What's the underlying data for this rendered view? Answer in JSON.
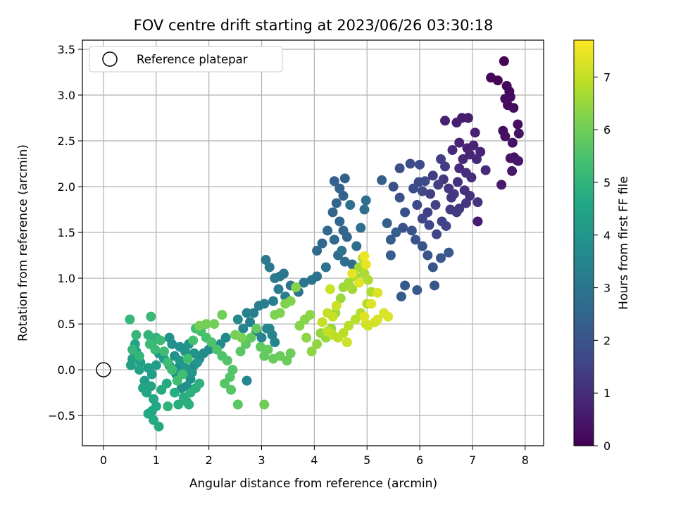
{
  "chart_data": {
    "type": "scatter",
    "title": "FOV centre drift starting at 2023/06/26 03:30:18",
    "xlabel": "Angular distance from reference (arcmin)",
    "ylabel": "Rotation from reference (arcmin)",
    "xlim": [
      -0.4,
      8.35
    ],
    "ylim": [
      -0.83,
      3.6
    ],
    "xticks": [
      0,
      1,
      2,
      3,
      4,
      5,
      6,
      7,
      8
    ],
    "yticks": [
      -0.5,
      0.0,
      0.5,
      1.0,
      1.5,
      2.0,
      2.5,
      3.0,
      3.5
    ],
    "xtick_labels": [
      "0",
      "1",
      "2",
      "3",
      "4",
      "5",
      "6",
      "7",
      "8"
    ],
    "ytick_labels": [
      "−0.5",
      "0.0",
      "0.5",
      "1.0",
      "1.5",
      "2.0",
      "2.5",
      "3.0",
      "3.5"
    ],
    "grid": true,
    "legend": {
      "placement": "top-left",
      "entries": [
        "Reference platepar"
      ]
    },
    "reference_point": {
      "x": 0,
      "y": 0,
      "label": "Reference platepar",
      "marker": "open-circle"
    },
    "colorbar": {
      "label": "Hours from first FF file",
      "colormap": "viridis",
      "range": [
        0,
        7.7
      ],
      "ticks": [
        0,
        1,
        2,
        3,
        4,
        5,
        6,
        7
      ],
      "tick_labels": [
        "0",
        "1",
        "2",
        "3",
        "4",
        "5",
        "6",
        "7"
      ]
    },
    "point_columns": [
      "x",
      "y",
      "hours"
    ],
    "points": [
      [
        7.6,
        3.37,
        0.05
      ],
      [
        7.35,
        3.19,
        0.1
      ],
      [
        7.48,
        3.16,
        0.12
      ],
      [
        7.65,
        3.1,
        0.15
      ],
      [
        7.7,
        3.04,
        0.18
      ],
      [
        7.72,
        2.98,
        0.2
      ],
      [
        7.67,
        2.89,
        0.22
      ],
      [
        7.78,
        2.86,
        0.25
      ],
      [
        7.62,
        2.96,
        0.28
      ],
      [
        7.86,
        2.68,
        0.3
      ],
      [
        7.58,
        2.61,
        0.32
      ],
      [
        7.62,
        2.55,
        0.35
      ],
      [
        7.88,
        2.58,
        0.38
      ],
      [
        7.76,
        2.48,
        0.4
      ],
      [
        7.79,
        2.32,
        0.42
      ],
      [
        7.72,
        2.31,
        0.45
      ],
      [
        7.84,
        2.29,
        0.48
      ],
      [
        7.87,
        2.28,
        0.5
      ],
      [
        7.75,
        2.17,
        0.52
      ],
      [
        7.55,
        2.02,
        0.55
      ],
      [
        7.1,
        1.62,
        0.58
      ],
      [
        6.8,
        2.75,
        0.6
      ],
      [
        6.92,
        2.75,
        0.62
      ],
      [
        6.7,
        2.7,
        0.65
      ],
      [
        6.48,
        2.72,
        0.68
      ],
      [
        7.05,
        2.59,
        0.7
      ],
      [
        6.75,
        2.48,
        0.72
      ],
      [
        6.9,
        2.42,
        0.75
      ],
      [
        7.02,
        2.45,
        0.78
      ],
      [
        7.15,
        2.38,
        0.8
      ],
      [
        6.95,
        2.35,
        0.82
      ],
      [
        7.08,
        2.3,
        0.85
      ],
      [
        6.82,
        2.3,
        0.88
      ],
      [
        6.62,
        2.4,
        0.9
      ],
      [
        6.75,
        2.2,
        0.92
      ],
      [
        7.25,
        2.18,
        0.95
      ],
      [
        6.88,
        2.15,
        1.0
      ],
      [
        6.98,
        2.1,
        1.02
      ],
      [
        6.72,
        2.05,
        1.05
      ],
      [
        6.85,
        1.96,
        1.08
      ],
      [
        6.95,
        1.9,
        1.1
      ],
      [
        6.88,
        1.82,
        1.12
      ],
      [
        6.75,
        1.76,
        1.15
      ],
      [
        7.1,
        1.83,
        1.18
      ],
      [
        6.6,
        1.88,
        1.2
      ],
      [
        6.55,
        1.98,
        1.22
      ],
      [
        6.45,
        2.08,
        1.25
      ],
      [
        6.65,
        1.92,
        1.28
      ],
      [
        6.58,
        1.75,
        1.3
      ],
      [
        6.7,
        1.72,
        1.32
      ],
      [
        6.48,
        2.22,
        1.35
      ],
      [
        6.4,
        2.3,
        1.38
      ],
      [
        6.25,
        2.12,
        1.4
      ],
      [
        6.35,
        2.02,
        1.42
      ],
      [
        6.2,
        1.92,
        1.45
      ],
      [
        6.3,
        1.8,
        1.48
      ],
      [
        6.15,
        1.72,
        1.5
      ],
      [
        6.42,
        1.62,
        1.52
      ],
      [
        6.5,
        1.57,
        1.55
      ],
      [
        6.32,
        1.48,
        1.58
      ],
      [
        6.18,
        1.58,
        1.6
      ],
      [
        6.05,
        1.65,
        1.62
      ],
      [
        5.95,
        1.8,
        1.65
      ],
      [
        6.05,
        1.95,
        1.68
      ],
      [
        6.1,
        2.06,
        1.7
      ],
      [
        5.98,
        2.05,
        1.72
      ],
      [
        5.88,
        1.98,
        1.75
      ],
      [
        6.0,
        2.24,
        1.78
      ],
      [
        5.82,
        2.25,
        1.8
      ],
      [
        5.62,
        2.2,
        1.82
      ],
      [
        5.5,
        2.0,
        1.85
      ],
      [
        5.62,
        1.88,
        1.88
      ],
      [
        5.72,
        1.72,
        1.9
      ],
      [
        5.68,
        1.55,
        1.92
      ],
      [
        5.85,
        1.52,
        1.95
      ],
      [
        5.92,
        1.42,
        1.98
      ],
      [
        6.05,
        1.35,
        2.0
      ],
      [
        6.15,
        1.25,
        2.02
      ],
      [
        6.25,
        1.12,
        2.05
      ],
      [
        6.4,
        1.22,
        2.08
      ],
      [
        6.55,
        1.28,
        2.1
      ],
      [
        6.28,
        0.92,
        2.12
      ],
      [
        5.95,
        0.87,
        2.15
      ],
      [
        5.72,
        0.92,
        2.18
      ],
      [
        5.65,
        0.8,
        2.2
      ],
      [
        5.45,
        1.42,
        2.22
      ],
      [
        5.45,
        1.25,
        2.25
      ],
      [
        5.55,
        1.5,
        2.28
      ],
      [
        5.38,
        1.6,
        2.3
      ],
      [
        5.28,
        2.07,
        2.32
      ],
      [
        4.58,
        2.09,
        2.35
      ],
      [
        4.38,
        2.06,
        2.38
      ],
      [
        4.48,
        1.98,
        2.4
      ],
      [
        4.55,
        1.9,
        2.42
      ],
      [
        4.42,
        1.82,
        2.45
      ],
      [
        4.35,
        1.72,
        2.48
      ],
      [
        4.48,
        1.62,
        2.5
      ],
      [
        4.55,
        1.52,
        2.52
      ],
      [
        4.62,
        1.45,
        2.55
      ],
      [
        4.38,
        1.42,
        2.58
      ],
      [
        4.25,
        1.52,
        2.6
      ],
      [
        4.15,
        1.38,
        2.62
      ],
      [
        4.05,
        1.3,
        2.65
      ],
      [
        4.45,
        1.25,
        2.68
      ],
      [
        4.58,
        1.18,
        2.7
      ],
      [
        4.72,
        1.15,
        2.72
      ],
      [
        4.8,
        1.35,
        2.75
      ],
      [
        4.88,
        1.55,
        2.78
      ],
      [
        4.95,
        1.75,
        2.8
      ],
      [
        4.98,
        1.85,
        2.82
      ],
      [
        4.68,
        1.8,
        2.85
      ],
      [
        4.52,
        1.3,
        2.88
      ],
      [
        4.22,
        1.12,
        2.9
      ],
      [
        4.05,
        1.02,
        2.92
      ],
      [
        3.95,
        0.98,
        2.95
      ],
      [
        3.8,
        0.95,
        2.98
      ],
      [
        3.7,
        0.85,
        3.0
      ],
      [
        3.55,
        0.92,
        3.02
      ],
      [
        3.42,
        1.05,
        3.05
      ],
      [
        3.35,
        1.02,
        3.08
      ],
      [
        3.25,
        1.0,
        3.1
      ],
      [
        3.08,
        1.2,
        3.12
      ],
      [
        3.15,
        1.12,
        3.15
      ],
      [
        3.32,
        0.88,
        3.18
      ],
      [
        3.45,
        0.8,
        3.2
      ],
      [
        3.22,
        0.75,
        3.22
      ],
      [
        3.05,
        0.72,
        3.25
      ],
      [
        2.95,
        0.7,
        3.28
      ],
      [
        2.85,
        0.62,
        3.3
      ],
      [
        2.72,
        0.62,
        3.32
      ],
      [
        2.78,
        0.52,
        3.35
      ],
      [
        2.9,
        0.42,
        3.38
      ],
      [
        3.0,
        0.35,
        3.4
      ],
      [
        3.1,
        0.45,
        3.42
      ],
      [
        3.2,
        0.38,
        3.45
      ],
      [
        3.25,
        0.3,
        3.48
      ],
      [
        3.15,
        0.45,
        3.5
      ],
      [
        2.72,
        -0.12,
        3.52
      ],
      [
        2.65,
        0.45,
        3.55
      ],
      [
        2.55,
        0.55,
        3.58
      ],
      [
        2.32,
        0.35,
        3.6
      ],
      [
        2.22,
        0.28,
        3.62
      ],
      [
        2.0,
        0.22,
        3.65
      ],
      [
        1.9,
        0.18,
        3.68
      ],
      [
        1.82,
        0.12,
        3.7
      ],
      [
        1.72,
        0.05,
        3.72
      ],
      [
        1.65,
        -0.1,
        3.75
      ],
      [
        1.58,
        -0.18,
        3.78
      ],
      [
        1.48,
        -0.2,
        3.8
      ],
      [
        1.42,
        0.02,
        3.82
      ],
      [
        1.35,
        0.15,
        3.85
      ],
      [
        1.45,
        0.25,
        3.88
      ],
      [
        1.3,
        0.28,
        3.9
      ],
      [
        1.25,
        0.35,
        3.92
      ],
      [
        1.55,
        0.2,
        3.95
      ],
      [
        1.62,
        0.28,
        3.98
      ],
      [
        1.72,
        0.18,
        4.0
      ],
      [
        1.78,
        0.08,
        4.02
      ],
      [
        1.68,
        -0.03,
        4.05
      ],
      [
        1.55,
        0.02,
        4.08
      ],
      [
        1.45,
        0.1,
        4.1
      ],
      [
        1.38,
        -0.05,
        4.12
      ],
      [
        1.25,
        0.05,
        4.15
      ],
      [
        1.15,
        0.12,
        4.18
      ],
      [
        1.05,
        0.18,
        4.2
      ],
      [
        1.0,
        0.05,
        4.22
      ],
      [
        0.92,
        -0.05,
        4.25
      ],
      [
        0.85,
        0.02,
        4.28
      ],
      [
        0.78,
        -0.12,
        4.3
      ],
      [
        0.7,
        0.08,
        4.32
      ],
      [
        0.62,
        0.2,
        4.35
      ],
      [
        0.55,
        0.12,
        4.38
      ],
      [
        0.52,
        0.05,
        4.4
      ],
      [
        0.6,
        0.28,
        4.42
      ],
      [
        0.68,
        0.0,
        4.45
      ],
      [
        0.75,
        -0.2,
        4.48
      ],
      [
        0.82,
        -0.25,
        4.5
      ],
      [
        0.9,
        -0.18,
        4.52
      ],
      [
        0.95,
        -0.32,
        4.55
      ],
      [
        1.0,
        -0.4,
        4.58
      ],
      [
        0.92,
        -0.45,
        4.6
      ],
      [
        0.85,
        -0.48,
        4.62
      ],
      [
        0.95,
        -0.55,
        4.65
      ],
      [
        1.05,
        -0.62,
        4.68
      ],
      [
        1.1,
        -0.22,
        4.7
      ],
      [
        1.2,
        -0.15,
        4.72
      ],
      [
        1.35,
        -0.25,
        4.75
      ],
      [
        1.42,
        -0.38,
        4.78
      ],
      [
        1.52,
        -0.3,
        4.8
      ],
      [
        1.58,
        -0.35,
        4.82
      ],
      [
        1.62,
        -0.38,
        4.85
      ],
      [
        1.65,
        -0.25,
        4.88
      ],
      [
        1.75,
        -0.2,
        4.9
      ],
      [
        1.82,
        -0.15,
        4.92
      ],
      [
        1.22,
        -0.4,
        4.95
      ],
      [
        1.0,
        0.35,
        4.98
      ],
      [
        0.92,
        0.3,
        5.0
      ],
      [
        0.85,
        0.38,
        5.02
      ],
      [
        0.68,
        0.15,
        5.05
      ],
      [
        0.55,
        0.22,
        5.08
      ],
      [
        0.62,
        0.38,
        5.1
      ],
      [
        0.5,
        0.55,
        5.12
      ],
      [
        0.9,
        0.58,
        5.15
      ],
      [
        0.88,
        0.28,
        5.18
      ],
      [
        0.98,
        0.22,
        5.2
      ],
      [
        1.08,
        0.32,
        5.22
      ],
      [
        1.15,
        0.2,
        5.25
      ],
      [
        1.22,
        0.08,
        5.28
      ],
      [
        1.3,
        0.0,
        5.3
      ],
      [
        1.4,
        -0.12,
        5.32
      ],
      [
        1.5,
        -0.05,
        5.35
      ],
      [
        1.6,
        0.12,
        5.38
      ],
      [
        1.7,
        0.32,
        5.4
      ],
      [
        1.75,
        0.45,
        5.42
      ],
      [
        1.85,
        0.42,
        5.45
      ],
      [
        1.95,
        0.35,
        5.48
      ],
      [
        2.05,
        0.3,
        5.5
      ],
      [
        2.15,
        0.22,
        5.52
      ],
      [
        2.25,
        0.15,
        5.55
      ],
      [
        2.35,
        0.1,
        5.58
      ],
      [
        2.45,
        0.0,
        5.6
      ],
      [
        2.4,
        -0.08,
        5.62
      ],
      [
        2.3,
        -0.15,
        5.65
      ],
      [
        2.42,
        -0.22,
        5.68
      ],
      [
        2.55,
        -0.38,
        5.7
      ],
      [
        2.6,
        0.2,
        5.72
      ],
      [
        2.7,
        0.28,
        5.75
      ],
      [
        2.8,
        0.35,
        5.78
      ],
      [
        2.9,
        0.45,
        5.8
      ],
      [
        2.98,
        0.25,
        5.82
      ],
      [
        3.05,
        0.15,
        5.85
      ],
      [
        3.12,
        0.22,
        5.88
      ],
      [
        3.22,
        0.12,
        5.9
      ],
      [
        3.35,
        0.15,
        5.92
      ],
      [
        3.48,
        0.1,
        5.95
      ],
      [
        3.55,
        0.18,
        5.98
      ],
      [
        3.05,
        -0.38,
        6.0
      ],
      [
        2.25,
        0.6,
        6.02
      ],
      [
        2.1,
        0.5,
        6.05
      ],
      [
        1.95,
        0.5,
        6.08
      ],
      [
        1.82,
        0.48,
        6.1
      ],
      [
        2.5,
        0.38,
        6.12
      ],
      [
        2.62,
        0.35,
        6.15
      ],
      [
        3.25,
        0.6,
        6.18
      ],
      [
        3.35,
        0.62,
        6.2
      ],
      [
        3.45,
        0.72,
        6.22
      ],
      [
        3.55,
        0.75,
        6.25
      ],
      [
        3.65,
        0.9,
        6.28
      ],
      [
        3.72,
        0.48,
        6.3
      ],
      [
        3.82,
        0.55,
        6.32
      ],
      [
        3.92,
        0.6,
        6.35
      ],
      [
        3.85,
        0.35,
        6.38
      ],
      [
        3.95,
        0.2,
        6.4
      ],
      [
        4.05,
        0.28,
        6.42
      ],
      [
        4.12,
        0.4,
        6.45
      ],
      [
        4.22,
        0.35,
        6.48
      ],
      [
        4.32,
        0.45,
        6.5
      ],
      [
        4.4,
        0.62,
        6.52
      ],
      [
        4.5,
        0.78,
        6.55
      ],
      [
        4.55,
        0.9,
        6.58
      ],
      [
        4.65,
        0.95,
        6.6
      ],
      [
        4.72,
        0.88,
        6.62
      ],
      [
        4.78,
        1.02,
        6.65
      ],
      [
        4.85,
        1.12,
        6.68
      ],
      [
        4.92,
        1.22,
        6.7
      ],
      [
        4.95,
        1.05,
        6.72
      ],
      [
        5.02,
        0.98,
        6.75
      ],
      [
        5.08,
        0.85,
        6.78
      ],
      [
        5.0,
        0.72,
        6.8
      ],
      [
        4.88,
        0.62,
        6.82
      ],
      [
        4.78,
        0.55,
        6.85
      ],
      [
        4.65,
        0.48,
        6.88
      ],
      [
        4.55,
        0.4,
        6.9
      ],
      [
        4.45,
        0.35,
        6.92
      ],
      [
        4.35,
        0.38,
        6.95
      ],
      [
        4.25,
        0.42,
        6.98
      ],
      [
        4.15,
        0.52,
        7.0
      ],
      [
        4.25,
        0.62,
        7.02
      ],
      [
        4.35,
        0.58,
        7.05
      ],
      [
        4.42,
        0.7,
        7.08
      ],
      [
        4.3,
        0.88,
        7.1
      ],
      [
        4.62,
        0.3,
        7.12
      ],
      [
        4.98,
        0.5,
        7.15
      ],
      [
        5.02,
        0.48,
        7.18
      ],
      [
        5.15,
        0.52,
        7.2
      ],
      [
        5.2,
        0.55,
        7.22
      ],
      [
        5.32,
        0.62,
        7.25
      ],
      [
        5.4,
        0.58,
        7.28
      ],
      [
        5.2,
        0.84,
        7.3
      ],
      [
        5.08,
        0.72,
        7.32
      ],
      [
        4.95,
        0.58,
        7.35
      ],
      [
        4.85,
        0.95,
        7.38
      ],
      [
        4.72,
        1.05,
        7.4
      ],
      [
        4.98,
        1.15,
        7.45
      ],
      [
        4.95,
        1.24,
        7.5
      ]
    ]
  }
}
